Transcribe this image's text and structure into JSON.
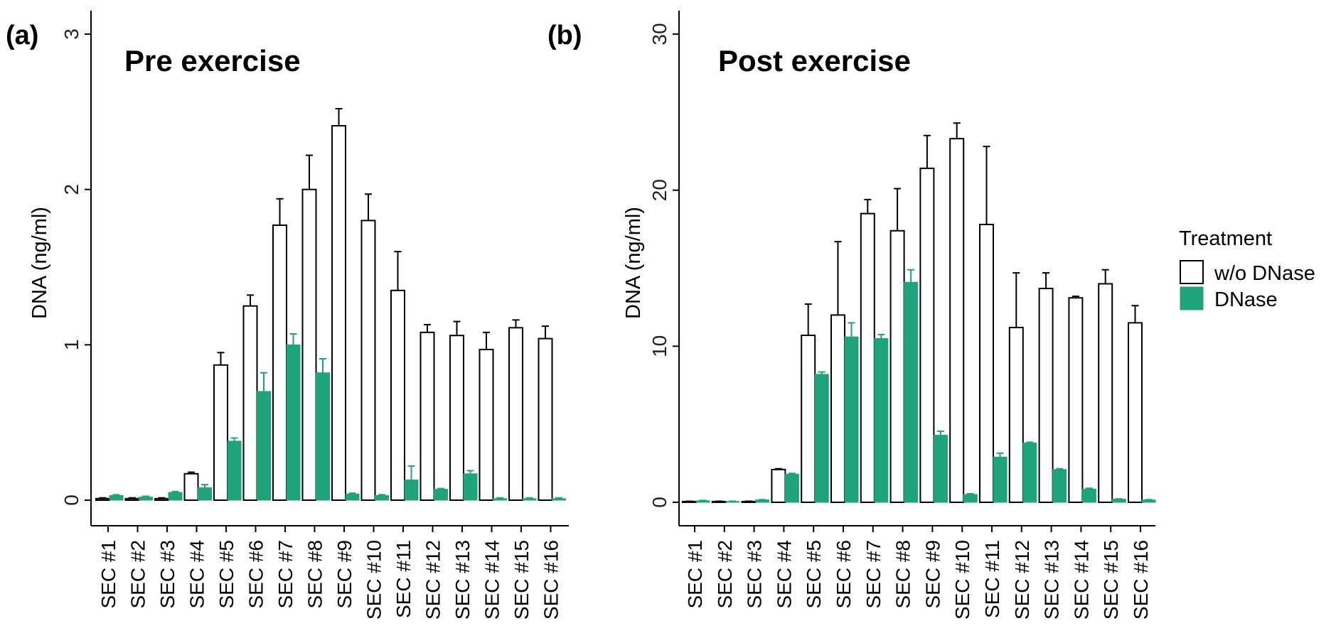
{
  "colors": {
    "dnase": "#1fa37a",
    "wo": "#ffffff",
    "stroke": "#000000"
  },
  "legend": {
    "title": "Treatment",
    "items": [
      "w/o DNase",
      "DNase"
    ]
  },
  "chart_data": [
    {
      "type": "bar",
      "panel_label": "(a)",
      "title": "Pre exercise",
      "xlabel": "",
      "ylabel": "DNA (ng/ml)",
      "ylim": [
        0,
        3
      ],
      "yticks": [
        "0",
        "1",
        "2",
        "3"
      ],
      "categories": [
        "SEC #1",
        "SEC #2",
        "SEC #3",
        "SEC #4",
        "SEC #5",
        "SEC #6",
        "SEC #7",
        "SEC #8",
        "SEC #9",
        "SEC #10",
        "SEC #11",
        "SEC #12",
        "SEC #13",
        "SEC #14",
        "SEC #15",
        "SEC #16"
      ],
      "series": [
        {
          "name": "w/o DNase",
          "values": [
            0.01,
            0.01,
            0.01,
            0.17,
            0.87,
            1.25,
            1.77,
            2.0,
            2.41,
            1.8,
            1.35,
            1.08,
            1.06,
            0.97,
            1.11,
            1.04
          ],
          "errors": [
            0.005,
            0.005,
            0.005,
            0.01,
            0.08,
            0.07,
            0.17,
            0.22,
            0.11,
            0.17,
            0.25,
            0.05,
            0.09,
            0.11,
            0.05,
            0.08
          ]
        },
        {
          "name": "DNase",
          "values": [
            0.03,
            0.02,
            0.05,
            0.08,
            0.38,
            0.7,
            1.0,
            0.82,
            0.04,
            0.03,
            0.13,
            0.07,
            0.17,
            0.01,
            0.01,
            0.01
          ],
          "errors": [
            0.005,
            0.005,
            0.005,
            0.02,
            0.02,
            0.12,
            0.07,
            0.09,
            0.005,
            0.005,
            0.09,
            0.005,
            0.02,
            0.005,
            0.005,
            0.005
          ]
        }
      ]
    },
    {
      "type": "bar",
      "panel_label": "(b)",
      "title": "Post exercise",
      "xlabel": "",
      "ylabel": "DNA (ng/ml)",
      "ylim": [
        0,
        30
      ],
      "yticks": [
        "0",
        "10",
        "20",
        "30"
      ],
      "categories": [
        "SEC #1",
        "SEC #2",
        "SEC #3",
        "SEC #4",
        "SEC #5",
        "SEC #6",
        "SEC #7",
        "SEC #8",
        "SEC #9",
        "SEC #10",
        "SEC #11",
        "SEC #12",
        "SEC #13",
        "SEC #14",
        "SEC #15",
        "SEC #16"
      ],
      "series": [
        {
          "name": "w/o DNase",
          "values": [
            0.05,
            0.05,
            0.05,
            2.1,
            10.7,
            12.0,
            18.5,
            17.4,
            21.4,
            23.3,
            17.8,
            11.2,
            13.7,
            13.1,
            14.0,
            11.5
          ],
          "errors": [
            0.02,
            0.02,
            0.02,
            0.05,
            2.0,
            4.7,
            0.9,
            2.7,
            2.1,
            1.0,
            5.0,
            3.5,
            1.0,
            0.1,
            0.9,
            1.1
          ]
        },
        {
          "name": "DNase",
          "values": [
            0.1,
            0.05,
            0.15,
            1.8,
            8.2,
            10.6,
            10.5,
            14.1,
            4.3,
            0.5,
            2.9,
            3.8,
            2.1,
            0.85,
            0.2,
            0.15
          ],
          "errors": [
            0.02,
            0.02,
            0.02,
            0.05,
            0.15,
            0.9,
            0.25,
            0.8,
            0.25,
            0.05,
            0.25,
            0.05,
            0.05,
            0.05,
            0.02,
            0.02
          ]
        }
      ]
    }
  ]
}
